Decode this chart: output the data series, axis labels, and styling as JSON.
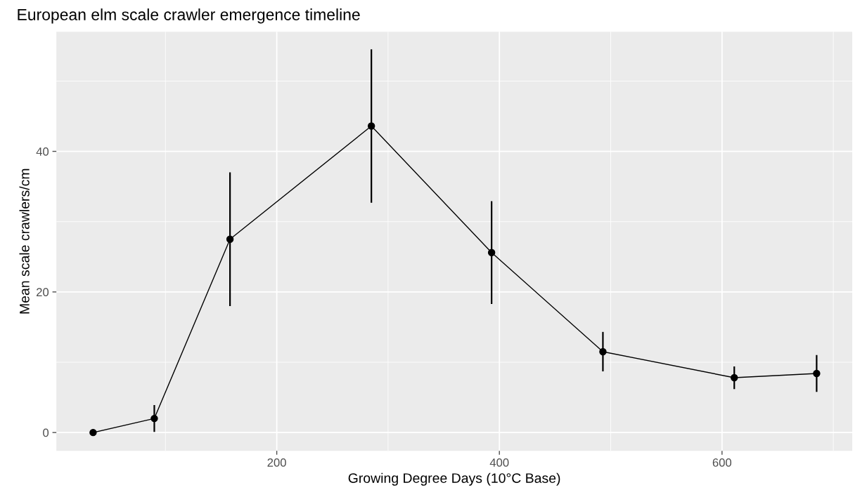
{
  "chart_data": {
    "type": "line",
    "title": "European elm scale crawler emergence timeline",
    "xlabel": "Growing Degree Days (10°C Base)",
    "ylabel": "Mean scale crawlers/cm",
    "x": [
      35,
      90,
      158,
      285,
      393,
      493,
      611,
      685
    ],
    "series": [
      {
        "color": "#000000",
        "values": [
          0,
          2.0,
          27.5,
          43.6,
          25.6,
          11.5,
          7.8,
          8.4
        ],
        "errors": [
          null,
          1.8,
          9.4,
          10.8,
          7.2,
          2.7,
          1.5,
          2.5
        ]
      }
    ],
    "xlim": [
      2,
      717
    ],
    "xticks": [
      200,
      400,
      600
    ],
    "ylim": [
      -2.6,
      57
    ],
    "yticks": [
      0,
      20,
      40
    ],
    "grid": true,
    "marker": "circle",
    "line_style": "solid"
  }
}
